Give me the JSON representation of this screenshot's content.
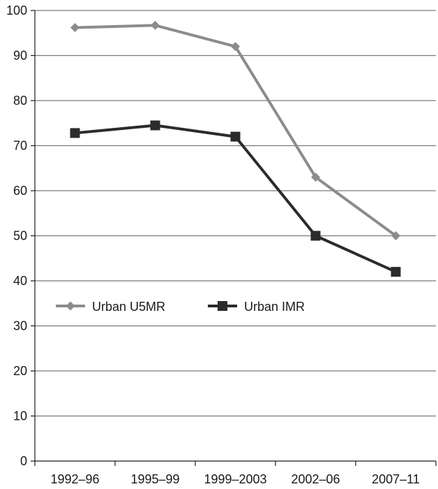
{
  "chart_data": {
    "type": "line",
    "categories": [
      "1992–96",
      "1995–99",
      "1999–2003",
      "2002–06",
      "2007–11"
    ],
    "series": [
      {
        "name": "Urban U5MR",
        "values": [
          96.2,
          96.7,
          92,
          63,
          50
        ],
        "color": "#8c8c8c",
        "marker": "diamond"
      },
      {
        "name": "Urban IMR",
        "values": [
          72.8,
          74.5,
          72,
          50,
          42
        ],
        "color": "#2b2b2b",
        "marker": "square"
      }
    ],
    "ylim": [
      0,
      100
    ],
    "yticks": [
      0,
      10,
      20,
      30,
      40,
      50,
      60,
      70,
      80,
      90,
      100
    ],
    "grid": true,
    "legend_position": "left-middle"
  }
}
